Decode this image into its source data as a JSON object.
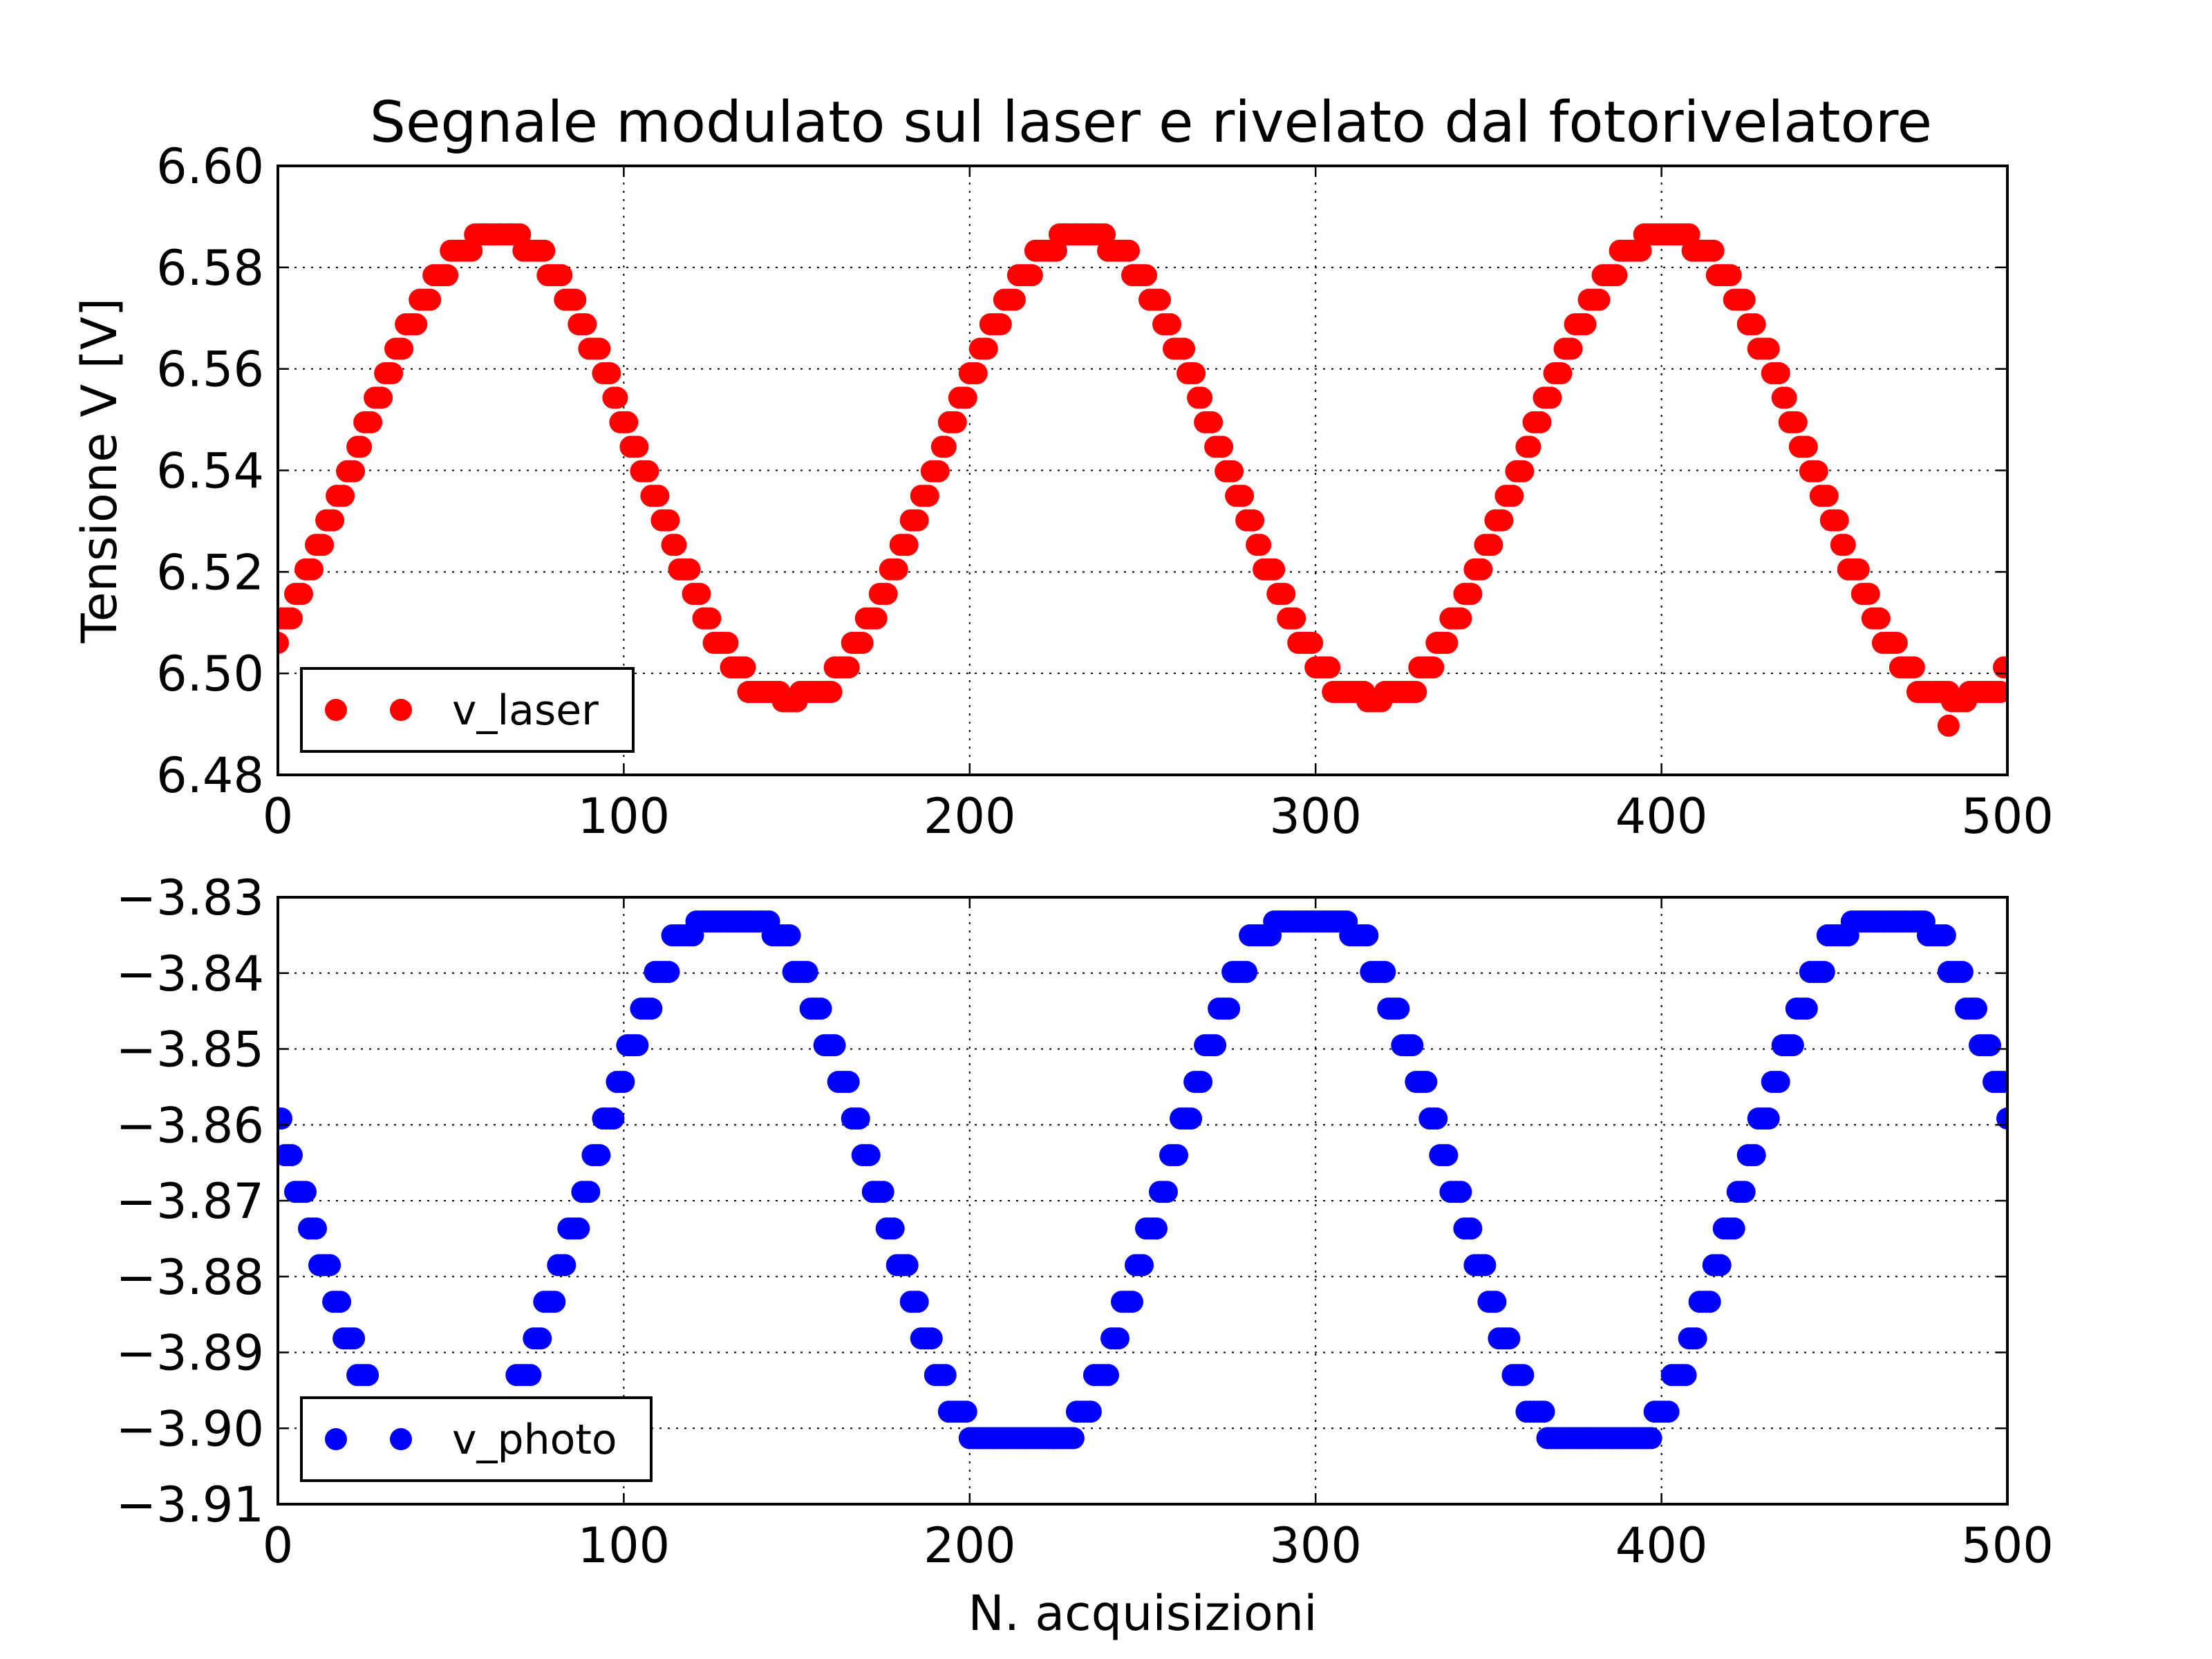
{
  "figure": {
    "title": "Segnale modulato sul laser e rivelato dal fotorivelatore"
  },
  "chart_data": [
    {
      "type": "scatter",
      "title": "Segnale modulato sul laser e rivelato dal fotorivelatore",
      "xlabel": "",
      "ylabel": "Tensione V [V]",
      "xlim": [
        0,
        500
      ],
      "ylim": [
        6.48,
        6.6
      ],
      "x_ticks": [
        0,
        100,
        200,
        300,
        400,
        500
      ],
      "y_ticks": [
        6.48,
        6.5,
        6.52,
        6.54,
        6.56,
        6.58,
        6.6
      ],
      "x_tick_labels": [
        "0",
        "100",
        "200",
        "300",
        "400",
        "500"
      ],
      "y_tick_labels": [
        "6.48",
        "6.50",
        "6.52",
        "6.54",
        "6.56",
        "6.58",
        "6.60"
      ],
      "grid": true,
      "legend_position": "lower-left",
      "series": [
        {
          "name": "v_laser",
          "color": "#ff0000",
          "marker": "circle",
          "model": {
            "offset": 6.5405,
            "amplitude": 0.0468,
            "period": 169,
            "phase_shift_x": 21.1,
            "quantization_step": 0.00483,
            "clip": [
              6.4945,
              6.5865
            ],
            "n_points": 501
          },
          "x_range": [
            0,
            500
          ],
          "outliers": [
            {
              "x": 483,
              "y": 6.4897
            }
          ]
        }
      ]
    },
    {
      "type": "scatter",
      "xlabel": "N. acquisizioni",
      "ylabel": "",
      "xlim": [
        0,
        500
      ],
      "ylim": [
        -3.91,
        -3.83
      ],
      "x_ticks": [
        0,
        100,
        200,
        300,
        400,
        500
      ],
      "y_ticks": [
        -3.91,
        -3.9,
        -3.89,
        -3.88,
        -3.87,
        -3.86,
        -3.85,
        -3.84,
        -3.83
      ],
      "x_tick_labels": [
        "0",
        "100",
        "200",
        "300",
        "400",
        "500"
      ],
      "y_tick_labels": [
        "−3.91",
        "−3.90",
        "−3.89",
        "−3.88",
        "−3.87",
        "−3.86",
        "−3.85",
        "−3.84",
        "−3.83"
      ],
      "grid": true,
      "legend_position": "lower-left",
      "series": [
        {
          "name": "v_photo",
          "color": "#0000ff",
          "marker": "circle",
          "model": {
            "offset": -3.868,
            "amplitude": 0.0388,
            "period": 167,
            "phase_shift_x": 89.5,
            "quantization_step": 0.00483,
            "clip": [
              -3.9013,
              -3.8332
            ],
            "n_points": 501
          },
          "x_range": [
            0,
            500
          ],
          "outliers": []
        }
      ]
    }
  ]
}
